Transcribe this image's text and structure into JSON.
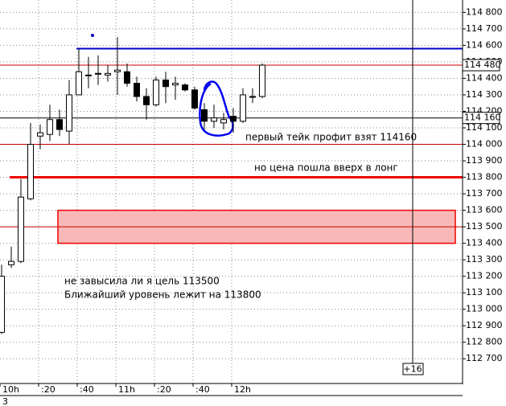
{
  "chart_data": {
    "type": "candlestick",
    "categories": [
      "10h",
      null,
      null,
      null,
      ":20",
      null,
      null,
      null,
      ":40",
      null,
      null,
      null,
      "11h",
      null,
      null,
      null,
      ":20",
      null,
      null,
      null,
      ":40",
      null,
      null,
      null,
      "12h",
      null,
      null,
      null
    ],
    "open": [
      112860,
      113270,
      113290,
      113670,
      114050,
      114060,
      114150,
      114080,
      114300,
      114420,
      114430,
      114420,
      114440,
      114440,
      114370,
      114290,
      114240,
      114390,
      114360,
      114360,
      114330,
      114210,
      114140,
      114130,
      114170,
      114140,
      114290,
      114290
    ],
    "high": [
      113270,
      113380,
      113790,
      114130,
      114120,
      114240,
      114210,
      114390,
      114580,
      114530,
      114540,
      114480,
      114650,
      114490,
      114410,
      114340,
      114410,
      114440,
      114410,
      114370,
      114350,
      114250,
      114240,
      114190,
      114220,
      114340,
      114340,
      114490
    ],
    "low": [
      112850,
      113250,
      113280,
      113660,
      113970,
      114020,
      114050,
      114000,
      114300,
      114340,
      114360,
      114380,
      114300,
      114350,
      114260,
      114150,
      114230,
      114250,
      114270,
      114320,
      114210,
      114090,
      114100,
      114090,
      114070,
      114130,
      114250,
      114280
    ],
    "close": [
      113200,
      113290,
      113680,
      114000,
      114070,
      114150,
      114090,
      114300,
      114440,
      114420,
      114430,
      114430,
      114450,
      114370,
      114290,
      114240,
      114390,
      114350,
      114370,
      114330,
      114220,
      114140,
      114160,
      114150,
      114140,
      114300,
      114290,
      114480
    ],
    "ylim": [
      112550,
      114875
    ],
    "yticks": [
      {
        "value": 114800,
        "label": "114 800"
      },
      {
        "value": 114700,
        "label": "114 700"
      },
      {
        "value": 114600,
        "label": "114 600"
      },
      {
        "value": 114500,
        "label": "114 500"
      },
      {
        "value": 114400,
        "label": "114 400"
      },
      {
        "value": 114300,
        "label": "114 300"
      },
      {
        "value": 114200,
        "label": "114 200"
      },
      {
        "value": 114100,
        "label": "114 100"
      },
      {
        "value": 114000,
        "label": "114 000"
      },
      {
        "value": 113900,
        "label": "113 900"
      },
      {
        "value": 113800,
        "label": "113 800"
      },
      {
        "value": 113700,
        "label": "113 700"
      },
      {
        "value": 113600,
        "label": "113 600"
      },
      {
        "value": 113500,
        "label": "113 500"
      },
      {
        "value": 113400,
        "label": "113 400"
      },
      {
        "value": 113300,
        "label": "113 300"
      },
      {
        "value": 113200,
        "label": "113 200"
      },
      {
        "value": 113100,
        "label": "113 100"
      },
      {
        "value": 113000,
        "label": "113 000"
      },
      {
        "value": 112900,
        "label": "112 900"
      },
      {
        "value": 112800,
        "label": "112 800"
      },
      {
        "value": 112700,
        "label": "112 700"
      }
    ],
    "price_labels": [
      {
        "value": 114480,
        "label": "114 480"
      },
      {
        "value": 114160,
        "label": "114 160"
      }
    ],
    "levels": [
      {
        "value": 114580,
        "color": "#0000cc",
        "width": 2
      },
      {
        "value": 114480,
        "color": "#cc0000",
        "width": 1
      },
      {
        "value": 114160,
        "color": "#000000",
        "width": 1
      },
      {
        "value": 114000,
        "color": "#cc0000",
        "width": 1
      },
      {
        "value": 113800,
        "color": "#ee0000",
        "width": 3
      },
      {
        "value": 113500,
        "color": "#cc0000",
        "width": 1
      }
    ],
    "zone": {
      "from": 113400,
      "to": 113600,
      "color": "#f8b8b8"
    },
    "cursor_label": "+16",
    "bottom_label": "3",
    "annotations": [
      {
        "text": "первый тейк профит взят 114160",
        "color": "#0000cc"
      },
      {
        "text": "но цена  пошла вверх в лонг",
        "color": "#0000cc"
      },
      {
        "text": "не завысила ли я цель 113500",
        "color": "#ee0000"
      },
      {
        "text": "Ближайший уровень лежит на 113800",
        "color": "#ee0000"
      }
    ],
    "grid": true
  }
}
